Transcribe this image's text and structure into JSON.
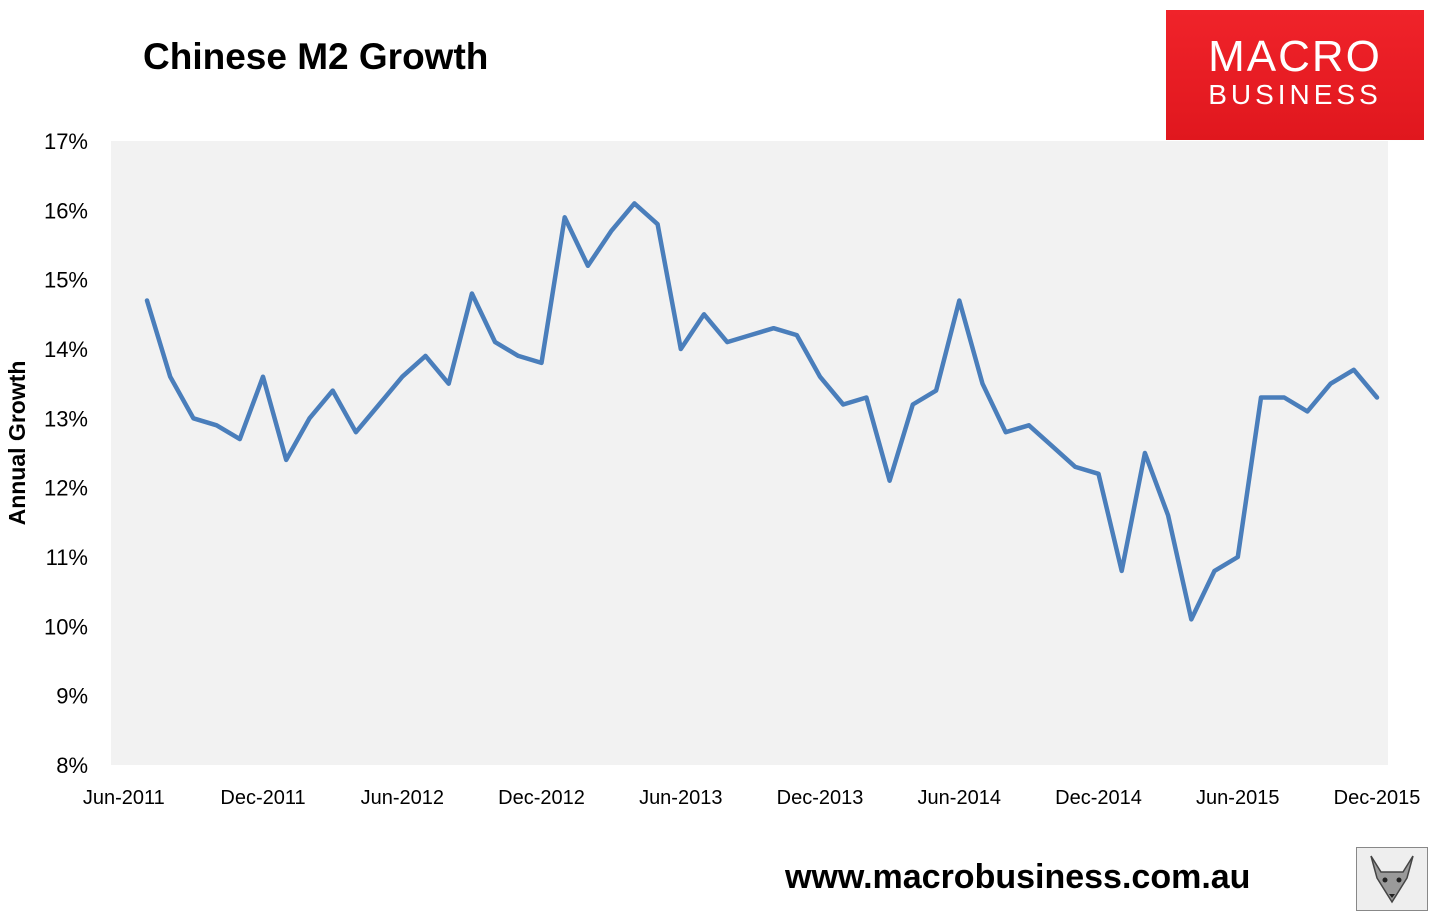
{
  "title": "Chinese M2 Growth",
  "logo": {
    "line1": "MACRO",
    "line2": "BUSINESS"
  },
  "website": "www.macrobusiness.com.au",
  "colors": {
    "line": "#4a7ebb",
    "plot_bg": "#f2f2f2",
    "logo_bg": "#e8191f"
  },
  "chart_data": {
    "type": "line",
    "title": "Chinese M2 Growth",
    "ylabel": "Annual Growth",
    "xlabel": "",
    "ylim": [
      8,
      17
    ],
    "yticks": [
      "8%",
      "9%",
      "10%",
      "11%",
      "12%",
      "13%",
      "14%",
      "15%",
      "16%",
      "17%"
    ],
    "xticks": [
      "Jun-2011",
      "Dec-2011",
      "Jun-2012",
      "Dec-2012",
      "Jun-2013",
      "Dec-2013",
      "Jun-2014",
      "Dec-2014",
      "Jun-2015",
      "Dec-2015"
    ],
    "grid": false,
    "series": [
      {
        "name": "Chinese M2 Growth",
        "x": [
          "Jul-2011",
          "Aug-2011",
          "Sep-2011",
          "Oct-2011",
          "Nov-2011",
          "Dec-2011",
          "Jan-2012",
          "Feb-2012",
          "Mar-2012",
          "Apr-2012",
          "May-2012",
          "Jun-2012",
          "Jul-2012",
          "Aug-2012",
          "Sep-2012",
          "Oct-2012",
          "Nov-2012",
          "Dec-2012",
          "Jan-2013",
          "Feb-2013",
          "Mar-2013",
          "Apr-2013",
          "May-2013",
          "Jun-2013",
          "Jul-2013",
          "Aug-2013",
          "Sep-2013",
          "Oct-2013",
          "Nov-2013",
          "Dec-2013",
          "Jan-2014",
          "Feb-2014",
          "Mar-2014",
          "Apr-2014",
          "May-2014",
          "Jun-2014",
          "Jul-2014",
          "Aug-2014",
          "Sep-2014",
          "Oct-2014",
          "Nov-2014",
          "Dec-2014",
          "Jan-2015",
          "Feb-2015",
          "Mar-2015",
          "Apr-2015",
          "May-2015",
          "Jun-2015",
          "Jul-2015",
          "Aug-2015",
          "Sep-2015",
          "Oct-2015",
          "Nov-2015",
          "Dec-2015"
        ],
        "values": [
          14.7,
          13.6,
          13.0,
          12.9,
          12.7,
          13.6,
          12.4,
          13.0,
          13.4,
          12.8,
          13.2,
          13.6,
          13.9,
          13.5,
          14.8,
          14.1,
          13.9,
          13.8,
          15.9,
          15.2,
          15.7,
          16.1,
          15.8,
          14.0,
          14.5,
          14.1,
          14.2,
          14.3,
          14.2,
          13.6,
          13.2,
          13.3,
          12.1,
          13.2,
          13.4,
          14.7,
          13.5,
          12.8,
          12.9,
          12.6,
          12.3,
          12.2,
          10.8,
          12.5,
          11.6,
          10.1,
          10.8,
          11.0,
          13.3,
          13.3,
          13.1,
          13.5,
          13.7,
          13.3
        ]
      }
    ]
  }
}
